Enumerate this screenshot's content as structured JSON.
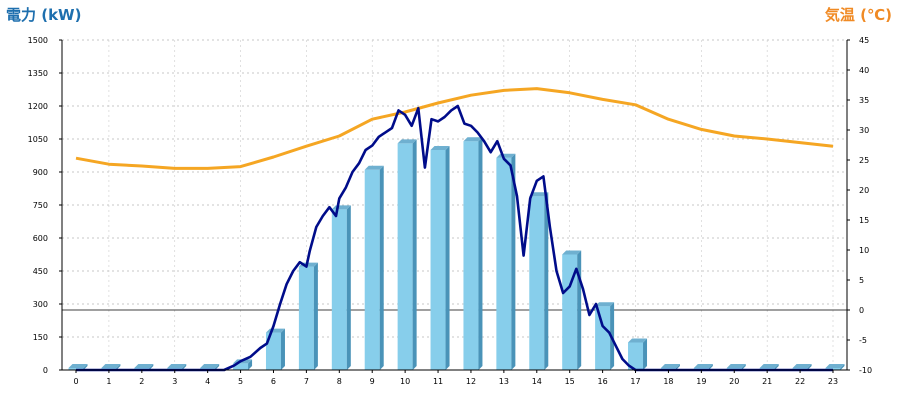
{
  "chart_data": {
    "type": "bar",
    "title_left": "電力 (kW)",
    "title_right": "気温 (℃)",
    "categories": [
      "0",
      "1",
      "2",
      "3",
      "4",
      "5",
      "6",
      "7",
      "8",
      "9",
      "10",
      "11",
      "12",
      "13",
      "14",
      "15",
      "16",
      "17",
      "18",
      "19",
      "20",
      "21",
      "22",
      "23"
    ],
    "left_axis": {
      "min": 0,
      "max": 1500,
      "ticks": [
        "0",
        "150",
        "300",
        "450",
        "600",
        "750",
        "900",
        "1050",
        "1200",
        "1350",
        "1500"
      ]
    },
    "right_axis": {
      "min": -10,
      "max": 45,
      "ticks": [
        "-10",
        "-5",
        "0",
        "5",
        "10",
        "15",
        "20",
        "25",
        "30",
        "35",
        "40",
        "45"
      ]
    },
    "bar_values": [
      0,
      0,
      0,
      0,
      0,
      30,
      170,
      470,
      730,
      910,
      1030,
      1000,
      1040,
      965,
      790,
      525,
      290,
      125,
      0,
      0,
      0,
      0,
      0,
      0
    ],
    "temperature": {
      "x": [
        0,
        1,
        2,
        3,
        4,
        5,
        6,
        7,
        8,
        9,
        10,
        11,
        12,
        13,
        14,
        15,
        16,
        17,
        18,
        19,
        20,
        21,
        22,
        23
      ],
      "y": [
        25.3,
        24.3,
        24.0,
        23.6,
        23.6,
        23.9,
        25.5,
        27.3,
        29.0,
        31.8,
        33.0,
        34.5,
        35.8,
        36.6,
        36.9,
        36.2,
        35.1,
        34.2,
        31.8,
        30.1,
        29.0,
        28.5,
        27.9,
        27.3
      ]
    },
    "power_line": {
      "x": [
        4.5,
        4.8,
        5.0,
        5.3,
        5.6,
        5.8,
        6.0,
        6.2,
        6.4,
        6.6,
        6.8,
        7.0,
        7.1,
        7.3,
        7.5,
        7.7,
        7.9,
        8.0,
        8.2,
        8.4,
        8.6,
        8.8,
        9.0,
        9.2,
        9.4,
        9.6,
        9.8,
        10.0,
        10.2,
        10.4,
        10.6,
        10.8,
        11.0,
        11.2,
        11.4,
        11.6,
        11.8,
        12.0,
        12.2,
        12.4,
        12.6,
        12.8,
        13.0,
        13.2,
        13.4,
        13.6,
        13.8,
        14.0,
        14.2,
        14.4,
        14.6,
        14.8,
        15.0,
        15.2,
        15.4,
        15.6,
        15.8,
        16.0,
        16.2,
        16.4,
        16.6,
        16.8,
        17.0,
        17.2,
        17.4,
        17.6,
        17.8,
        18.0
      ],
      "y": [
        0,
        20,
        40,
        60,
        100,
        120,
        200,
        300,
        390,
        450,
        490,
        470,
        540,
        650,
        700,
        740,
        700,
        780,
        830,
        900,
        940,
        1000,
        1020,
        1060,
        1080,
        1100,
        1180,
        1160,
        1110,
        1190,
        920,
        1140,
        1130,
        1150,
        1180,
        1200,
        1120,
        1110,
        1080,
        1040,
        990,
        1040,
        960,
        930,
        790,
        520,
        780,
        860,
        880,
        650,
        450,
        350,
        380,
        460,
        370,
        250,
        300,
        200,
        170,
        110,
        50,
        20,
        0,
        0,
        0,
        0,
        0,
        0
      ]
    },
    "grid": true,
    "zero_line": true
  }
}
